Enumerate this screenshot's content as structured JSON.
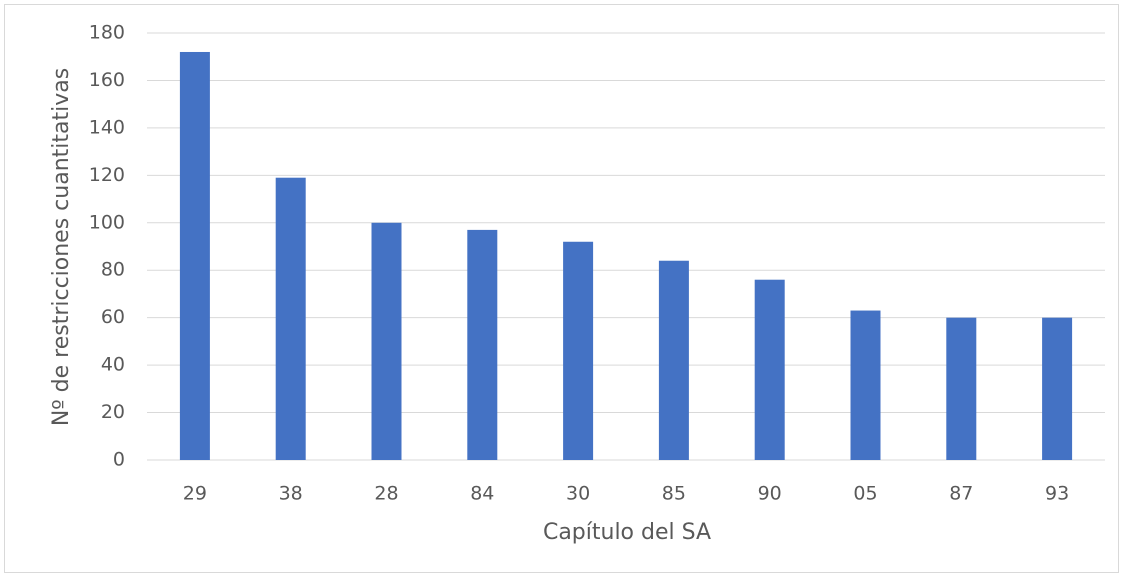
{
  "chart_data": {
    "type": "bar",
    "xlabel": "Capítulo del SA",
    "ylabel": "Nº de restricciones cuantitativas",
    "categories": [
      "29",
      "38",
      "28",
      "84",
      "30",
      "85",
      "90",
      "05",
      "87",
      "93"
    ],
    "values": [
      172,
      119,
      100,
      97,
      92,
      84,
      76,
      63,
      60,
      60
    ],
    "color": "#4472c4",
    "ylim": [
      0,
      180
    ],
    "yticks": [
      0,
      20,
      40,
      60,
      80,
      100,
      120,
      140,
      160,
      180
    ],
    "grid": true
  }
}
